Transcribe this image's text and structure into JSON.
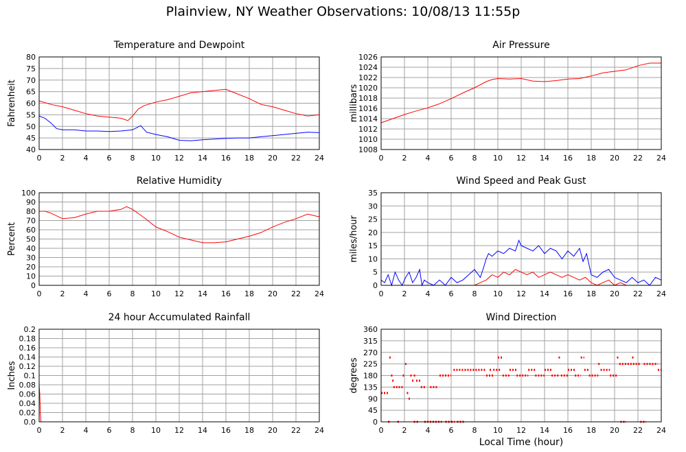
{
  "page_title": "Plainview, NY Weather Observations: 10/08/13 11:55p",
  "x_axis_caption": "Local Time (hour)",
  "colors": {
    "series_red": "#ff0000",
    "series_blue": "#0000ff",
    "grid": "#a0a0a0"
  },
  "chart_data": [
    {
      "id": "temperature",
      "type": "line",
      "title": "Temperature and Dewpoint",
      "xlabel": "",
      "ylabel": "Fahrenheit",
      "xlim": [
        0,
        24
      ],
      "ylim": [
        40,
        80
      ],
      "x_ticks": [
        "0",
        "2",
        "4",
        "6",
        "8",
        "10",
        "12",
        "14",
        "16",
        "18",
        "20",
        "22",
        "24"
      ],
      "y_ticks": [
        "40",
        "45",
        "50",
        "55",
        "60",
        "65",
        "70",
        "75",
        "80"
      ],
      "grid": true,
      "series": [
        {
          "color": "#ff0000",
          "x": [
            0,
            1,
            2,
            3,
            4,
            5,
            6,
            7,
            7.6,
            8,
            8.5,
            9,
            10,
            11,
            12,
            13,
            14,
            15,
            16,
            17,
            18,
            19,
            20,
            21,
            22,
            23,
            24
          ],
          "y": [
            61,
            59.5,
            58.5,
            57,
            55.5,
            54.5,
            54,
            53.5,
            52.5,
            54.5,
            57.5,
            59,
            60.5,
            61.5,
            63,
            64.5,
            65,
            65.5,
            66,
            64,
            62,
            59.5,
            58.5,
            57,
            55.5,
            54.5,
            55
          ]
        },
        {
          "color": "#0000ff",
          "x": [
            0,
            0.5,
            1,
            1.5,
            2,
            3,
            4,
            5,
            6,
            7,
            8,
            8.7,
            9.2,
            10,
            11,
            12,
            13,
            14,
            15,
            16,
            17,
            18,
            19,
            20,
            21,
            22,
            23,
            24
          ],
          "y": [
            54.5,
            53.5,
            51.5,
            49,
            48.5,
            48.5,
            48,
            48,
            47.8,
            48,
            48.5,
            50.3,
            47.5,
            46.5,
            45.5,
            44,
            43.8,
            44.2,
            44.5,
            44.8,
            45,
            45,
            45.5,
            46,
            46.5,
            47,
            47.5,
            47.3
          ]
        }
      ]
    },
    {
      "id": "pressure",
      "type": "line",
      "title": "Air Pressure",
      "xlabel": "",
      "ylabel": "millibars",
      "xlim": [
        0,
        24
      ],
      "ylim": [
        1008,
        1026
      ],
      "x_ticks": [
        "0",
        "2",
        "4",
        "6",
        "8",
        "10",
        "12",
        "14",
        "16",
        "18",
        "20",
        "22",
        "24"
      ],
      "y_ticks": [
        "1008",
        "1010",
        "1012",
        "1014",
        "1016",
        "1018",
        "1020",
        "1022",
        "1024",
        "1026"
      ],
      "grid": true,
      "series": [
        {
          "color": "#ff0000",
          "x": [
            0,
            1,
            2,
            3,
            4,
            5,
            6,
            7,
            8,
            9,
            9.5,
            10,
            11,
            12,
            13,
            14,
            15,
            16,
            17,
            18,
            19,
            20,
            21,
            22,
            23,
            24
          ],
          "y": [
            1013.2,
            1014,
            1014.8,
            1015.5,
            1016.1,
            1016.9,
            1017.9,
            1019,
            1020,
            1021.2,
            1021.6,
            1021.8,
            1021.7,
            1021.8,
            1021.3,
            1021.2,
            1021.4,
            1021.7,
            1021.8,
            1022.3,
            1022.9,
            1023.2,
            1023.5,
            1024.3,
            1024.8,
            1024.8
          ]
        }
      ]
    },
    {
      "id": "humidity",
      "type": "line",
      "title": "Relative Humidity",
      "xlabel": "",
      "ylabel": "Percent",
      "xlim": [
        0,
        24
      ],
      "ylim": [
        0,
        100
      ],
      "x_ticks": [
        "0",
        "2",
        "4",
        "6",
        "8",
        "10",
        "12",
        "14",
        "16",
        "18",
        "20",
        "22",
        "24"
      ],
      "y_ticks": [
        "0",
        "10",
        "20",
        "30",
        "40",
        "50",
        "60",
        "70",
        "80",
        "90",
        "100"
      ],
      "grid": true,
      "series": [
        {
          "color": "#ff0000",
          "x": [
            0,
            0.5,
            1,
            2,
            3,
            4,
            5,
            6,
            7,
            7.5,
            8,
            9,
            10,
            11,
            12,
            13,
            14,
            15,
            16,
            17,
            18,
            19,
            20,
            21,
            22,
            23,
            24
          ],
          "y": [
            80,
            80,
            78,
            72,
            73,
            77,
            80,
            80,
            82,
            85,
            82,
            73,
            63,
            58,
            52,
            49,
            46,
            46,
            47,
            50,
            53,
            57,
            63,
            68,
            72,
            77,
            74
          ]
        }
      ]
    },
    {
      "id": "wind_speed",
      "type": "line",
      "title": "Wind Speed and Peak Gust",
      "xlabel": "",
      "ylabel": "miles/hour",
      "xlim": [
        0,
        24
      ],
      "ylim": [
        0,
        35
      ],
      "x_ticks": [
        "0",
        "2",
        "4",
        "6",
        "8",
        "10",
        "12",
        "14",
        "16",
        "18",
        "20",
        "22",
        "24"
      ],
      "y_ticks": [
        "0",
        "5",
        "10",
        "15",
        "20",
        "25",
        "30",
        "35"
      ],
      "grid": true,
      "series": [
        {
          "color": "#0000ff",
          "x": [
            0,
            0.3,
            0.6,
            0.9,
            1.2,
            1.5,
            1.8,
            2.1,
            2.4,
            2.7,
            3.0,
            3.3,
            3.5,
            3.7,
            4,
            4.5,
            5,
            5.5,
            6,
            6.5,
            7,
            7.5,
            8,
            8.5,
            8.8,
            9,
            9.2,
            9.5,
            10,
            10.5,
            11,
            11.5,
            11.8,
            12,
            12.5,
            13,
            13.5,
            14,
            14.5,
            15,
            15.5,
            16,
            16.5,
            17,
            17.3,
            17.6,
            18,
            18.5,
            19,
            19.5,
            20,
            20.5,
            21,
            21.5,
            22,
            22.5,
            23,
            23.5,
            24
          ],
          "y": [
            2,
            1,
            4,
            0,
            5,
            2,
            0,
            3,
            5,
            1,
            3,
            6,
            0,
            2,
            1,
            0,
            2,
            0,
            3,
            1,
            2,
            4,
            6,
            3,
            7,
            10,
            12,
            11,
            13,
            12,
            14,
            13,
            17,
            15,
            14,
            13,
            15,
            12,
            14,
            13,
            10,
            13,
            11,
            14,
            9,
            12,
            4,
            3,
            5,
            6,
            3,
            2,
            1,
            3,
            1,
            2,
            0,
            3,
            2
          ]
        },
        {
          "color": "#ff0000",
          "x": [
            0,
            7.5,
            8,
            8.5,
            9,
            9.5,
            10,
            10.5,
            11,
            11.5,
            12,
            12.5,
            13,
            13.5,
            14,
            14.5,
            15,
            15.5,
            16,
            16.5,
            17,
            17.5,
            18,
            18.5,
            19,
            19.5,
            20,
            20.5,
            21,
            24
          ],
          "y": [
            0,
            0,
            0,
            1,
            2,
            4,
            3,
            5,
            4,
            6,
            5,
            4,
            5,
            3,
            4,
            5,
            4,
            3,
            4,
            3,
            2,
            3,
            1,
            0,
            1,
            2,
            0,
            1,
            0,
            0
          ]
        }
      ]
    },
    {
      "id": "rainfall",
      "type": "line",
      "title": "24 hour Accumulated Rainfall",
      "xlabel": "",
      "ylabel": "Inches",
      "xlim": [
        0,
        24
      ],
      "ylim": [
        0,
        0.2
      ],
      "x_ticks": [
        "0",
        "2",
        "4",
        "6",
        "8",
        "10",
        "12",
        "14",
        "16",
        "18",
        "20",
        "22",
        "24"
      ],
      "y_ticks": [
        "0.0",
        "0.02",
        "0.04",
        "0.06",
        "0.08",
        "0.1",
        "0.12",
        "0.14",
        "0.16",
        "0.18",
        "0.2"
      ],
      "grid": true,
      "series": [
        {
          "color": "#ff0000",
          "x": [
            0,
            0.05,
            0.1,
            0.15,
            24
          ],
          "y": [
            0.08,
            0.06,
            0.02,
            0,
            0
          ]
        }
      ]
    },
    {
      "id": "wind_direction",
      "type": "scatter",
      "title": "Wind Direction",
      "xlabel": "Local Time (hour)",
      "ylabel": "degrees",
      "xlim": [
        0,
        24
      ],
      "ylim": [
        0,
        360
      ],
      "x_ticks": [
        "0",
        "2",
        "4",
        "6",
        "8",
        "10",
        "12",
        "14",
        "16",
        "18",
        "20",
        "22",
        "24"
      ],
      "y_ticks": [
        "0",
        "45",
        "90",
        "135",
        "180",
        "225",
        "270",
        "315",
        "360"
      ],
      "grid": true,
      "series": [
        {
          "color": "#ff0000",
          "segments": [
            [
              0,
              0.6,
              112
            ],
            [
              0.6,
              0.8,
              0
            ],
            [
              0.7,
              0.75,
              250
            ],
            [
              0.85,
              0.95,
              180
            ],
            [
              0.95,
              1.05,
              160
            ],
            [
              1.05,
              1.4,
              135
            ],
            [
              1.4,
              1.5,
              0
            ],
            [
              1.5,
              1.85,
              135
            ],
            [
              1.85,
              2.05,
              180
            ],
            [
              2.05,
              2.25,
              225
            ],
            [
              2.2,
              2.35,
              112
            ],
            [
              2.35,
              2.5,
              90
            ],
            [
              2.5,
              2.65,
              180
            ],
            [
              2.65,
              2.8,
              160
            ],
            [
              2.8,
              3.0,
              180
            ],
            [
              2.8,
              3.2,
              0
            ],
            [
              3.0,
              3.4,
              160
            ],
            [
              3.4,
              3.8,
              135
            ],
            [
              3.7,
              5.2,
              0
            ],
            [
              4.2,
              4.8,
              135
            ],
            [
              5.0,
              6.0,
              180
            ],
            [
              5.5,
              6.0,
              0
            ],
            [
              6.0,
              6.3,
              0
            ],
            [
              6.5,
              7.2,
              0
            ],
            [
              6.2,
              9.0,
              202
            ],
            [
              9.0,
              9.6,
              180
            ],
            [
              9.3,
              9.5,
              202
            ],
            [
              9.6,
              10.2,
              202
            ],
            [
              10.0,
              10.4,
              250
            ],
            [
              10.4,
              11.0,
              180
            ],
            [
              11.0,
              11.6,
              202
            ],
            [
              11.6,
              12.6,
              180
            ],
            [
              12.6,
              13.2,
              202
            ],
            [
              13.2,
              14.0,
              180
            ],
            [
              14.0,
              14.6,
              202
            ],
            [
              14.6,
              15.2,
              180
            ],
            [
              15.2,
              15.4,
              250
            ],
            [
              15.4,
              16.0,
              180
            ],
            [
              16.0,
              16.6,
              202
            ],
            [
              16.6,
              17.1,
              180
            ],
            [
              17.1,
              17.4,
              250
            ],
            [
              17.4,
              17.8,
              202
            ],
            [
              17.8,
              18.6,
              180
            ],
            [
              18.6,
              18.8,
              225
            ],
            [
              18.8,
              19.6,
              202
            ],
            [
              19.6,
              20.2,
              180
            ],
            [
              20.2,
              20.4,
              250
            ],
            [
              20.4,
              21.8,
              225
            ],
            [
              21.5,
              21.7,
              250
            ],
            [
              20.5,
              21.0,
              0
            ],
            [
              21.8,
              22.2,
              225
            ],
            [
              22.2,
              22.7,
              0
            ],
            [
              22.5,
              23.7,
              225
            ],
            [
              23.7,
              24.0,
              202
            ]
          ]
        }
      ]
    }
  ]
}
